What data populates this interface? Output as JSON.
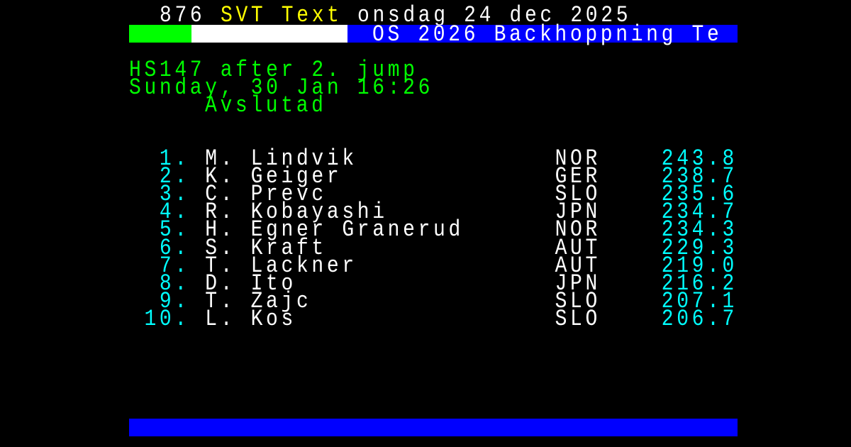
{
  "colors": {
    "white": "#ffffff",
    "yellow": "#ffff00",
    "green": "#00ff00",
    "cyan": "#00ffff",
    "blue": "#0000ff"
  },
  "header": {
    "page_number": "876",
    "service": "SVT Text",
    "date": "onsdag 24 dec 2025",
    "banner_title": "OS 2026 Backhoppning Te"
  },
  "event": {
    "line1": "HS147 after 2. jump",
    "line2": "Sunday, 30 Jan 16:26",
    "status": "Avslutad"
  },
  "results": [
    {
      "rank": "1.",
      "name": "M. Lindvik",
      "country": "NOR",
      "score": "243.8"
    },
    {
      "rank": "2.",
      "name": "K. Geiger",
      "country": "GER",
      "score": "238.7"
    },
    {
      "rank": "3.",
      "name": "C. Prevc",
      "country": "SLO",
      "score": "235.6"
    },
    {
      "rank": "4.",
      "name": "R. Kobayashi",
      "country": "JPN",
      "score": "234.7"
    },
    {
      "rank": "5.",
      "name": "H. Egner Granerud",
      "country": "NOR",
      "score": "234.3"
    },
    {
      "rank": "6.",
      "name": "S. Kraft",
      "country": "AUT",
      "score": "229.3"
    },
    {
      "rank": "7.",
      "name": "T. Lackner",
      "country": "AUT",
      "score": "219.0"
    },
    {
      "rank": "8.",
      "name": "D. Ito",
      "country": "JPN",
      "score": "216.2"
    },
    {
      "rank": "9.",
      "name": "T. Zajc",
      "country": "SLO",
      "score": "207.1"
    },
    {
      "rank": "10.",
      "name": "L. Kos",
      "country": "SLO",
      "score": "206.7"
    }
  ]
}
